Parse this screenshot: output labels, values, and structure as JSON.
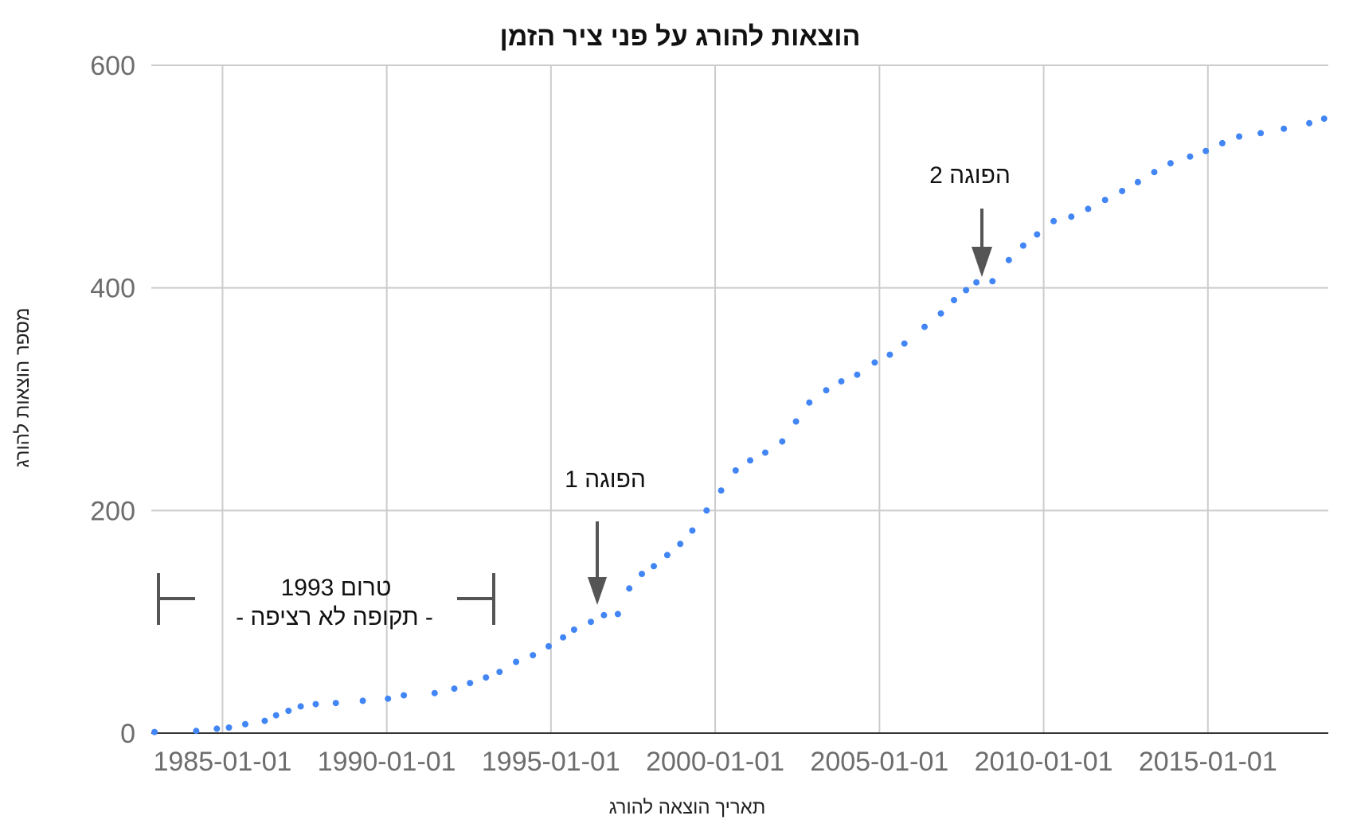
{
  "chart_data": {
    "type": "scatter",
    "title": "הוצאות להורג על פני ציר הזמן",
    "xlabel": "תאריך הוצאה להורג",
    "ylabel": "מספר הוצאות להורג",
    "xlim": [
      "1982-11-01",
      "2018-09-01"
    ],
    "ylim": [
      0,
      600
    ],
    "y_ticks": [
      0,
      200,
      400,
      600
    ],
    "x_ticks": [
      "1985-01-01",
      "1990-01-01",
      "1995-01-01",
      "2000-01-01",
      "2005-01-01",
      "2010-01-01",
      "2015-01-01"
    ],
    "grid": true,
    "marker_color": "#4285f4",
    "series": [
      {
        "name": "",
        "points": [
          [
            "1982-12-07",
            1
          ],
          [
            "1984-03-14",
            2
          ],
          [
            "1984-10-30",
            4
          ],
          [
            "1985-03-13",
            5
          ],
          [
            "1985-09-11",
            8
          ],
          [
            "1986-04-15",
            11
          ],
          [
            "1986-08-20",
            16
          ],
          [
            "1987-01-05",
            20
          ],
          [
            "1987-05-20",
            24
          ],
          [
            "1987-11-04",
            26
          ],
          [
            "1988-06-14",
            27
          ],
          [
            "1989-04-10",
            29
          ],
          [
            "1990-01-15",
            31
          ],
          [
            "1990-07-10",
            34
          ],
          [
            "1991-06-18",
            36
          ],
          [
            "1992-01-22",
            40
          ],
          [
            "1992-07-15",
            45
          ],
          [
            "1993-01-08",
            50
          ],
          [
            "1993-06-08",
            55
          ],
          [
            "1993-12-10",
            64
          ],
          [
            "1994-06-14",
            70
          ],
          [
            "1994-12-07",
            78
          ],
          [
            "1995-05-16",
            86
          ],
          [
            "1995-09-15",
            93
          ],
          [
            "1996-03-20",
            100
          ],
          [
            "1996-08-12",
            106
          ],
          [
            "1997-01-14",
            107
          ],
          [
            "1997-05-21",
            130
          ],
          [
            "1997-10-08",
            143
          ],
          [
            "1998-02-18",
            150
          ],
          [
            "1998-07-17",
            160
          ],
          [
            "1998-12-09",
            170
          ],
          [
            "1999-04-22",
            182
          ],
          [
            "1999-09-28",
            200
          ],
          [
            "2000-03-08",
            218
          ],
          [
            "2000-08-16",
            236
          ],
          [
            "2001-01-24",
            245
          ],
          [
            "2001-07-11",
            252
          ],
          [
            "2002-01-16",
            262
          ],
          [
            "2002-06-18",
            280
          ],
          [
            "2002-11-13",
            297
          ],
          [
            "2003-05-20",
            308
          ],
          [
            "2003-11-04",
            316
          ],
          [
            "2004-04-28",
            322
          ],
          [
            "2004-11-09",
            333
          ],
          [
            "2005-04-26",
            340
          ],
          [
            "2005-10-05",
            350
          ],
          [
            "2006-05-17",
            365
          ],
          [
            "2006-11-15",
            377
          ],
          [
            "2007-04-10",
            389
          ],
          [
            "2007-08-22",
            398
          ],
          [
            "2007-12-15",
            405
          ],
          [
            "2008-06-11",
            406
          ],
          [
            "2008-12-09",
            425
          ],
          [
            "2009-05-19",
            438
          ],
          [
            "2009-10-20",
            448
          ],
          [
            "2010-04-22",
            460
          ],
          [
            "2010-11-04",
            464
          ],
          [
            "2011-05-10",
            471
          ],
          [
            "2011-11-15",
            479
          ],
          [
            "2012-05-22",
            487
          ],
          [
            "2012-11-14",
            495
          ],
          [
            "2013-05-15",
            504
          ],
          [
            "2013-11-12",
            512
          ],
          [
            "2014-06-17",
            518
          ],
          [
            "2014-12-09",
            523
          ],
          [
            "2015-06-10",
            530
          ],
          [
            "2015-12-15",
            536
          ],
          [
            "2016-08-10",
            539
          ],
          [
            "2017-04-25",
            543
          ],
          [
            "2018-02-01",
            548
          ],
          [
            "2018-07-17",
            552
          ]
        ]
      }
    ],
    "annotations": [
      {
        "id": "pause1",
        "text": "הפוגה 1",
        "date": "1996-09-01",
        "value": 110
      },
      {
        "id": "pause2",
        "text": "הפוגה 2",
        "date": "2008-02-15",
        "value": 407
      }
    ],
    "bracket": {
      "line1": "טרום 1993",
      "line2": "- תקופה לא רציפה -",
      "from": "1983-01-01",
      "to": "1993-06-01"
    }
  }
}
